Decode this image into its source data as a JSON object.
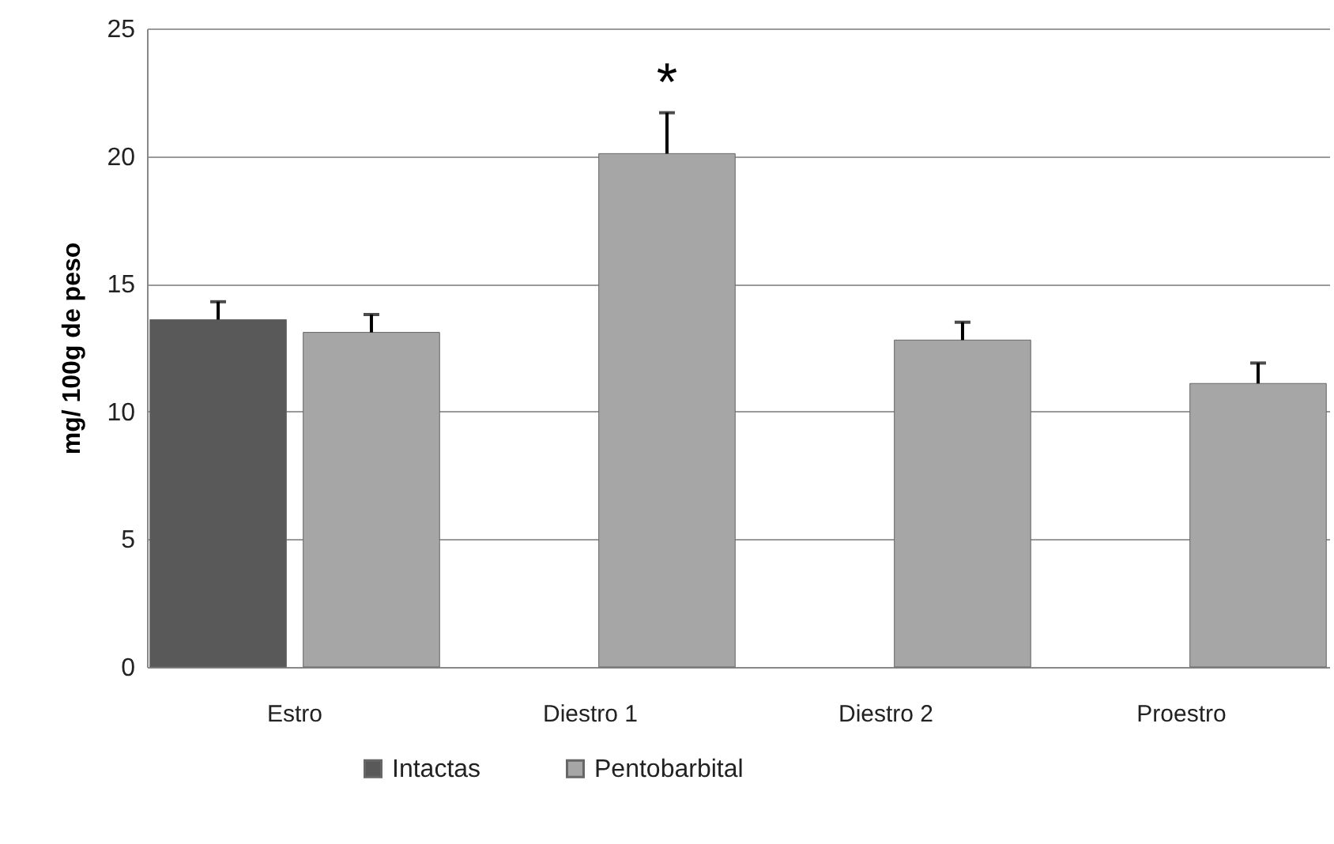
{
  "chart_data": {
    "type": "bar",
    "ylabel": "mg/ 100g de peso",
    "categories": [
      "Estro",
      "Diestro 1",
      "Diestro 2",
      "Proestro"
    ],
    "series": [
      {
        "name": "Intactas",
        "color": "#595959",
        "values": [
          13.6,
          null,
          null,
          null
        ],
        "errors": [
          [
            13.6,
            14.3
          ],
          null,
          null,
          null
        ]
      },
      {
        "name": "Pentobarbital",
        "color": "#a6a6a6",
        "values": [
          13.1,
          20.1,
          12.8,
          11.1
        ],
        "errors": [
          [
            13.1,
            13.8
          ],
          [
            20.1,
            21.7
          ],
          [
            12.8,
            13.5
          ],
          [
            11.1,
            11.9
          ]
        ]
      }
    ],
    "ylim": [
      0,
      25
    ],
    "yticks": [
      0,
      5,
      10,
      15,
      20,
      25
    ],
    "grid": "y",
    "legend": "bottom",
    "annotations": [
      "*"
    ]
  }
}
